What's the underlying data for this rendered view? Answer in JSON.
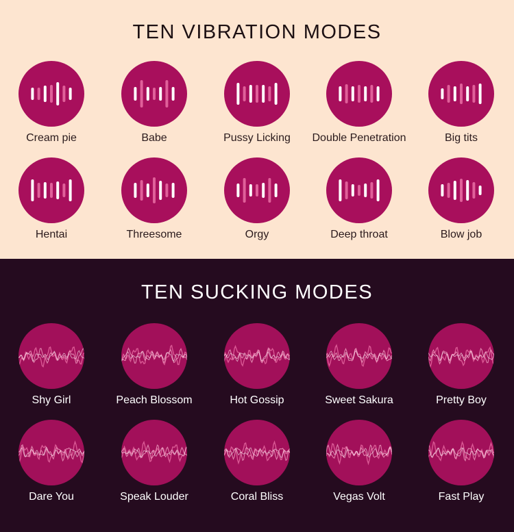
{
  "vibration": {
    "title": "TEN VIBRATION MODES",
    "modes": [
      {
        "label": "Cream pie",
        "icon": "vibration-bars-icon"
      },
      {
        "label": "Babe",
        "icon": "vibration-bars-icon"
      },
      {
        "label": "Pussy Licking",
        "icon": "vibration-bars-icon"
      },
      {
        "label": "Double Penetration",
        "icon": "vibration-bars-icon"
      },
      {
        "label": "Big tits",
        "icon": "vibration-bars-icon"
      },
      {
        "label": "Hentai",
        "icon": "vibration-bars-icon"
      },
      {
        "label": "Threesome",
        "icon": "vibration-bars-icon"
      },
      {
        "label": "Orgy",
        "icon": "vibration-bars-icon"
      },
      {
        "label": "Deep throat",
        "icon": "vibration-bars-icon"
      },
      {
        "label": "Blow job",
        "icon": "vibration-bars-icon"
      }
    ]
  },
  "sucking": {
    "title": "TEN SUCKING MODES",
    "modes": [
      {
        "label": "Shy Girl",
        "icon": "waveform-icon"
      },
      {
        "label": "Peach Blossom",
        "icon": "waveform-icon"
      },
      {
        "label": "Hot Gossip",
        "icon": "waveform-icon"
      },
      {
        "label": "Sweet Sakura",
        "icon": "waveform-icon"
      },
      {
        "label": "Pretty Boy",
        "icon": "waveform-icon"
      },
      {
        "label": "Dare You",
        "icon": "waveform-icon"
      },
      {
        "label": "Speak Louder",
        "icon": "waveform-icon"
      },
      {
        "label": "Coral Bliss",
        "icon": "waveform-icon"
      },
      {
        "label": "Vegas Volt",
        "icon": "waveform-icon"
      },
      {
        "label": "Fast Play",
        "icon": "waveform-icon"
      }
    ]
  },
  "colors": {
    "top_background": "#fde5d0",
    "bottom_background": "#250b1f",
    "circle": "#a80f5c",
    "bar_white": "#ffffff",
    "bar_pink": "#e0609a"
  }
}
